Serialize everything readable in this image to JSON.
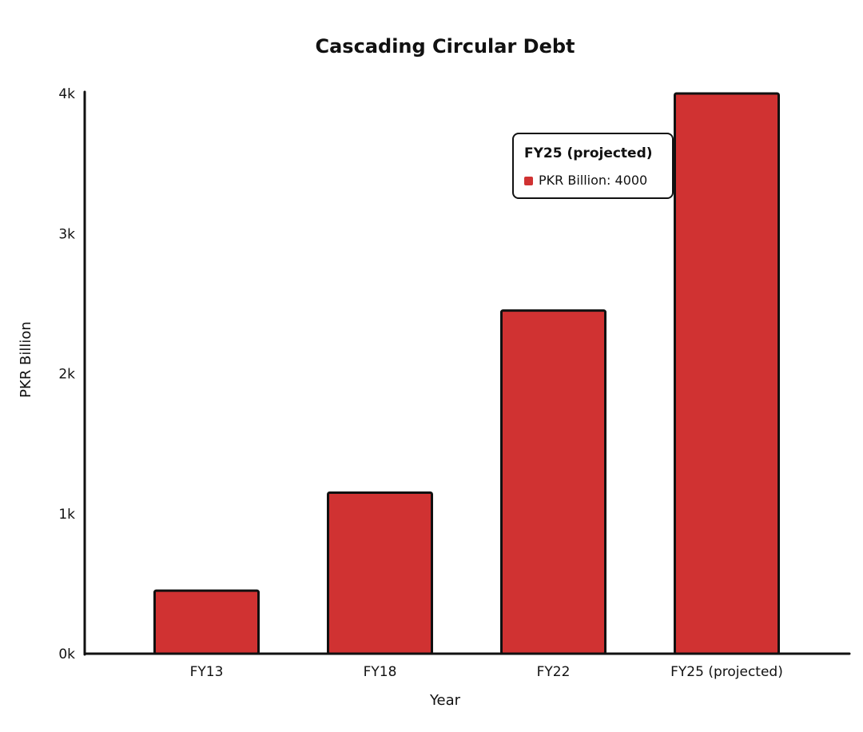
{
  "chart_data": {
    "type": "bar",
    "title": "Cascading Circular Debt",
    "xlabel": "Year",
    "ylabel": "PKR Billion",
    "categories": [
      "FY13",
      "FY18",
      "FY22",
      "FY25 (projected)"
    ],
    "series": [
      {
        "name": "PKR Billion",
        "values": [
          450,
          1150,
          2450,
          4000
        ]
      }
    ],
    "ylim": [
      0,
      4000
    ],
    "yticks": [
      0,
      1000,
      2000,
      3000,
      4000
    ],
    "ytick_labels": [
      "0k",
      "1k",
      "2k",
      "3k",
      "4k"
    ],
    "grid": false,
    "bar_color": "#d03232",
    "tooltip": {
      "title": "FY25 (projected)",
      "series_label": "PKR Billion",
      "value": "4000",
      "text": "PKR Billion: 4000",
      "category_index": 3
    }
  }
}
